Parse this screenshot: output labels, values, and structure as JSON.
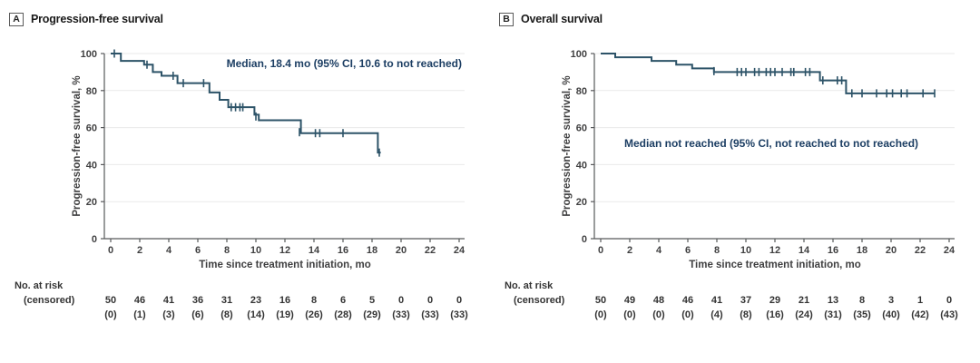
{
  "colors": {
    "curve": "#2d5368",
    "annotation": "#1c3e63",
    "axis": "#58595b",
    "tick_text": "#404041",
    "grid": "#e9e9e9",
    "title_text": "#1a1a1a",
    "risk_text": "#333333",
    "background": "#ffffff"
  },
  "chart_data": [
    {
      "type": "line",
      "subtype": "kaplan-meier",
      "panel_label": "A",
      "title": "Progression-free survival",
      "annotation": "Median, 18.4 mo (95% CI, 10.6 to not reached)",
      "xlabel": "Time since treatment initiation, mo",
      "ylabel": "Progression-free survival, %",
      "xlim": [
        0,
        24
      ],
      "ylim": [
        0,
        100
      ],
      "xticks": [
        0,
        2,
        4,
        6,
        8,
        10,
        12,
        14,
        16,
        18,
        20,
        22,
        24
      ],
      "yticks": [
        0,
        20,
        40,
        60,
        80,
        100
      ],
      "grid": true,
      "legend": "none",
      "km_steps": [
        [
          0,
          100
        ],
        [
          0.7,
          96
        ],
        [
          2.3,
          94
        ],
        [
          2.9,
          90
        ],
        [
          3.5,
          88
        ],
        [
          4.6,
          84
        ],
        [
          6.8,
          79
        ],
        [
          7.5,
          75
        ],
        [
          8.1,
          71
        ],
        [
          9.9,
          67
        ],
        [
          10.2,
          64
        ],
        [
          13.1,
          57
        ],
        [
          18.4,
          46.5
        ]
      ],
      "curve_end": 18.6,
      "censor_marks": [
        [
          0.25,
          100
        ],
        [
          2.5,
          94
        ],
        [
          2.9,
          92
        ],
        [
          4.3,
          88
        ],
        [
          5.0,
          84
        ],
        [
          6.4,
          84
        ],
        [
          8.3,
          71
        ],
        [
          8.6,
          71
        ],
        [
          8.9,
          71
        ],
        [
          9.1,
          71
        ],
        [
          10.0,
          66
        ],
        [
          13.0,
          57.5
        ],
        [
          14.1,
          57
        ],
        [
          14.4,
          57
        ],
        [
          16.0,
          57
        ],
        [
          18.5,
          46.5
        ]
      ],
      "risk_table": {
        "label_line1": "No. at risk",
        "label_line2": "(censored)",
        "at_risk": [
          50,
          46,
          41,
          36,
          31,
          23,
          16,
          8,
          6,
          5,
          0,
          0,
          0
        ],
        "censored": [
          "(0)",
          "(1)",
          "(3)",
          "(6)",
          "(8)",
          "(14)",
          "(19)",
          "(26)",
          "(28)",
          "(29)",
          "(33)",
          "(33)",
          "(33)"
        ]
      }
    },
    {
      "type": "line",
      "subtype": "kaplan-meier",
      "panel_label": "B",
      "title": "Overall survival",
      "annotation": "Median not reached (95% CI, not reached to not reached)",
      "xlabel": "Time since treatment initiation, mo",
      "ylabel": "Progression-free survival, %",
      "xlim": [
        0,
        24
      ],
      "ylim": [
        0,
        100
      ],
      "xticks": [
        0,
        2,
        4,
        6,
        8,
        10,
        12,
        14,
        16,
        18,
        20,
        22,
        24
      ],
      "yticks": [
        0,
        20,
        40,
        60,
        80,
        100
      ],
      "grid": true,
      "legend": "none",
      "km_steps": [
        [
          0,
          100
        ],
        [
          1.0,
          98
        ],
        [
          3.5,
          96
        ],
        [
          5.2,
          94
        ],
        [
          6.3,
          92
        ],
        [
          7.8,
          90
        ],
        [
          15.1,
          85.5
        ],
        [
          16.9,
          78.5
        ]
      ],
      "curve_end": 23.0,
      "censor_marks": [
        [
          7.8,
          90.5
        ],
        [
          9.4,
          90
        ],
        [
          9.7,
          90
        ],
        [
          10.0,
          90
        ],
        [
          10.6,
          90
        ],
        [
          10.9,
          90
        ],
        [
          11.4,
          90
        ],
        [
          11.7,
          90
        ],
        [
          12.0,
          90
        ],
        [
          12.5,
          90
        ],
        [
          13.1,
          90
        ],
        [
          13.3,
          90
        ],
        [
          14.1,
          90
        ],
        [
          14.4,
          90
        ],
        [
          15.3,
          85.5
        ],
        [
          16.3,
          85.5
        ],
        [
          16.6,
          85.5
        ],
        [
          17.3,
          78.5
        ],
        [
          18.0,
          78.5
        ],
        [
          19.0,
          78.5
        ],
        [
          19.7,
          78.5
        ],
        [
          20.1,
          78.5
        ],
        [
          20.7,
          78.5
        ],
        [
          21.1,
          78.5
        ],
        [
          22.2,
          78.5
        ],
        [
          23.0,
          78.5
        ]
      ],
      "risk_table": {
        "label_line1": "No. at risk",
        "label_line2": "(censored)",
        "at_risk": [
          50,
          49,
          48,
          46,
          41,
          37,
          29,
          21,
          13,
          8,
          3,
          1,
          0
        ],
        "censored": [
          "(0)",
          "(0)",
          "(0)",
          "(0)",
          "(4)",
          "(8)",
          "(16)",
          "(24)",
          "(31)",
          "(35)",
          "(40)",
          "(42)",
          "(43)"
        ]
      }
    }
  ]
}
